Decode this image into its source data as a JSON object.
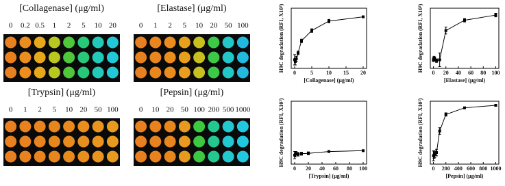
{
  "plates": [
    {
      "title": "[Collagenase] (μg/ml)",
      "labels": [
        "0",
        "0.2",
        "0.5",
        "1",
        "2",
        "5",
        "10",
        "20"
      ],
      "colors": [
        "#e8801f",
        "#ec8e1e",
        "#e8a81c",
        "#b8c81e",
        "#4ec83a",
        "#28c878",
        "#22c8b8",
        "#22c8d8"
      ]
    },
    {
      "title": "[Elastase] (μg/ml)",
      "labels": [
        "0",
        "1",
        "2",
        "5",
        "10",
        "20",
        "50",
        "100"
      ],
      "colors": [
        "#e8801f",
        "#ea861e",
        "#ea8c1e",
        "#e8a01c",
        "#c8c01e",
        "#3ec848",
        "#22c8c8",
        "#22b8e0"
      ]
    },
    {
      "title": "[Trypsin] (μg/ml)",
      "labels": [
        "0",
        "1",
        "2",
        "5",
        "10",
        "20",
        "50",
        "100"
      ],
      "colors": [
        "#e8801f",
        "#e8821f",
        "#e8841f",
        "#e8861e",
        "#e88a1e",
        "#e88e1e",
        "#e8941e",
        "#e89a1e"
      ]
    },
    {
      "title": "[Pepsin] (μg/ml)",
      "labels": [
        "0",
        "10",
        "20",
        "50",
        "100",
        "200",
        "500",
        "1000"
      ],
      "colors": [
        "#e8801f",
        "#e8821f",
        "#e8861e",
        "#e89a1e",
        "#3cc840",
        "#22c890",
        "#22c8d0",
        "#22c8e0"
      ]
    }
  ],
  "chart_data": [
    {
      "type": "line",
      "xlabel": "[Collagenase] (μg/ml)",
      "ylabel": "H9C degradation (RFI, X10³)",
      "color": "#000000",
      "x": [
        0,
        0.2,
        0.5,
        1,
        2,
        5,
        10,
        20
      ],
      "values": [
        0,
        -1,
        0.5,
        4,
        11,
        17,
        22.5,
        25
      ],
      "errors": [
        3,
        2,
        1.5,
        1,
        1,
        1,
        1,
        0.5
      ],
      "xlim": [
        -1,
        21
      ],
      "ylim": [
        -5,
        30
      ],
      "xticks": [
        0,
        5,
        10,
        15,
        20
      ]
    },
    {
      "type": "line",
      "xlabel": "[Elastase] (μg/ml)",
      "ylabel": "H9C degradation (RFI, X10³)",
      "color": "#000000",
      "x": [
        0,
        1,
        2,
        5,
        10,
        20,
        50,
        100
      ],
      "values": [
        0,
        1,
        0.5,
        -0.5,
        0,
        17,
        23,
        26
      ],
      "errors": [
        1,
        1,
        1,
        1,
        4,
        2,
        1,
        1
      ],
      "xlim": [
        -5,
        105
      ],
      "ylim": [
        -5,
        30
      ],
      "xticks": [
        0,
        20,
        40,
        60,
        80,
        100
      ]
    },
    {
      "type": "line",
      "xlabel": "[Trypsin] (μg/ml)",
      "ylabel": "H9C degradation (RFI, X10³)",
      "color": "#000000",
      "x": [
        0,
        1,
        2,
        5,
        10,
        20,
        50,
        100
      ],
      "values": [
        0,
        0.5,
        1,
        0.5,
        0.8,
        1,
        2,
        2.5
      ],
      "errors": [
        2,
        1.5,
        1,
        1,
        0.8,
        0.8,
        0.5,
        0.5
      ],
      "xlim": [
        -5,
        105
      ],
      "ylim": [
        -5,
        30
      ],
      "xticks": [
        0,
        20,
        40,
        60,
        80,
        100
      ]
    },
    {
      "type": "line",
      "xlabel": "[Pepsin] (μg/ml)",
      "ylabel": "H9C degradation (RFI, X10³)",
      "color": "#000000",
      "x": [
        0,
        10,
        20,
        50,
        100,
        200,
        500,
        1000
      ],
      "values": [
        0,
        0.5,
        1,
        2,
        15,
        25,
        29,
        30.5
      ],
      "errors": [
        3,
        2,
        2,
        2,
        2,
        1,
        0.5,
        0.5
      ],
      "xlim": [
        -50,
        1050
      ],
      "ylim": [
        -5,
        33
      ],
      "xticks": [
        0,
        200,
        400,
        600,
        800,
        1000
      ]
    }
  ]
}
